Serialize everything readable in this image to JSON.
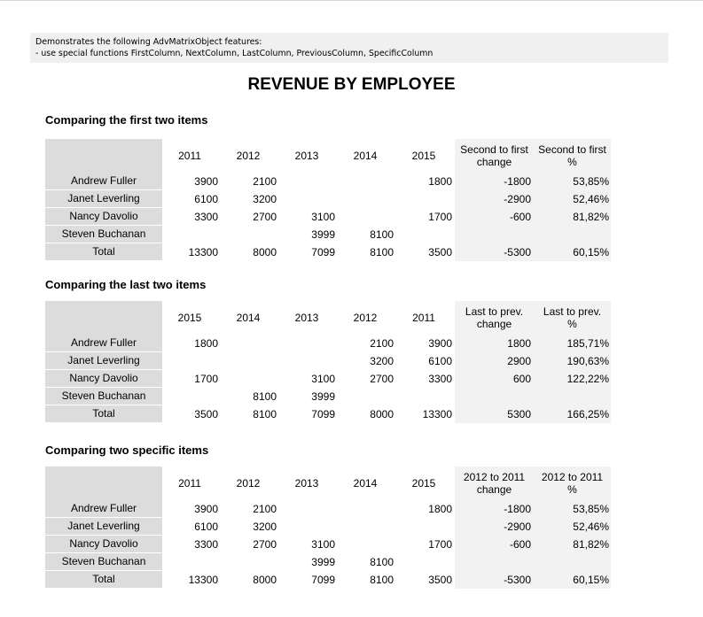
{
  "description": {
    "line1": "Demonstrates the following AdvMatrixObject features:",
    "line2": "- use special functions FirstColumn, NextColumn, LastColumn, PreviousColumn, SpecificColumn"
  },
  "report_title": "REVENUE BY EMPLOYEE",
  "sections": [
    {
      "title": "Comparing the first two items",
      "years": [
        "2011",
        "2012",
        "2013",
        "2014",
        "2015"
      ],
      "diff_header": [
        "Second to first",
        "change"
      ],
      "pct_header": [
        "Second to first",
        "%"
      ],
      "rows": [
        {
          "name": "Andrew Fuller",
          "values": [
            "3900",
            "2100",
            "",
            "",
            "1800"
          ],
          "diff": "-1800",
          "pct": "53,85%"
        },
        {
          "name": "Janet Leverling",
          "values": [
            "6100",
            "3200",
            "",
            "",
            ""
          ],
          "diff": "-2900",
          "pct": "52,46%"
        },
        {
          "name": "Nancy Davolio",
          "values": [
            "3300",
            "2700",
            "3100",
            "",
            "1700"
          ],
          "diff": "-600",
          "pct": "81,82%"
        },
        {
          "name": "Steven Buchanan",
          "values": [
            "",
            "",
            "3999",
            "8100",
            ""
          ],
          "diff": "",
          "pct": ""
        },
        {
          "name": "Total",
          "values": [
            "13300",
            "8000",
            "7099",
            "8100",
            "3500"
          ],
          "diff": "-5300",
          "pct": "60,15%"
        }
      ]
    },
    {
      "title": "Comparing the last two items",
      "years": [
        "2015",
        "2014",
        "2013",
        "2012",
        "2011"
      ],
      "diff_header": [
        "Last to prev.",
        "change"
      ],
      "pct_header": [
        "Last to prev.",
        "%"
      ],
      "rows": [
        {
          "name": "Andrew Fuller",
          "values": [
            "1800",
            "",
            "",
            "2100",
            "3900"
          ],
          "diff": "1800",
          "pct": "185,71%"
        },
        {
          "name": "Janet Leverling",
          "values": [
            "",
            "",
            "",
            "3200",
            "6100"
          ],
          "diff": "2900",
          "pct": "190,63%"
        },
        {
          "name": "Nancy Davolio",
          "values": [
            "1700",
            "",
            "3100",
            "2700",
            "3300"
          ],
          "diff": "600",
          "pct": "122,22%"
        },
        {
          "name": "Steven Buchanan",
          "values": [
            "",
            "8100",
            "3999",
            "",
            ""
          ],
          "diff": "",
          "pct": ""
        },
        {
          "name": "Total",
          "values": [
            "3500",
            "8100",
            "7099",
            "8000",
            "13300"
          ],
          "diff": "5300",
          "pct": "166,25%"
        }
      ]
    },
    {
      "title": "Comparing two specific items",
      "years": [
        "2011",
        "2012",
        "2013",
        "2014",
        "2015"
      ],
      "diff_header": [
        "2012 to 2011",
        "change"
      ],
      "pct_header": [
        "2012 to 2011",
        "%"
      ],
      "rows": [
        {
          "name": "Andrew Fuller",
          "values": [
            "3900",
            "2100",
            "",
            "",
            "1800"
          ],
          "diff": "-1800",
          "pct": "53,85%"
        },
        {
          "name": "Janet Leverling",
          "values": [
            "6100",
            "3200",
            "",
            "",
            ""
          ],
          "diff": "-2900",
          "pct": "52,46%"
        },
        {
          "name": "Nancy Davolio",
          "values": [
            "3300",
            "2700",
            "3100",
            "",
            "1700"
          ],
          "diff": "-600",
          "pct": "81,82%"
        },
        {
          "name": "Steven Buchanan",
          "values": [
            "",
            "",
            "3999",
            "8100",
            ""
          ],
          "diff": "",
          "pct": ""
        },
        {
          "name": "Total",
          "values": [
            "13300",
            "8000",
            "7099",
            "8100",
            "3500"
          ],
          "diff": "-5300",
          "pct": "60,15%"
        }
      ]
    }
  ]
}
